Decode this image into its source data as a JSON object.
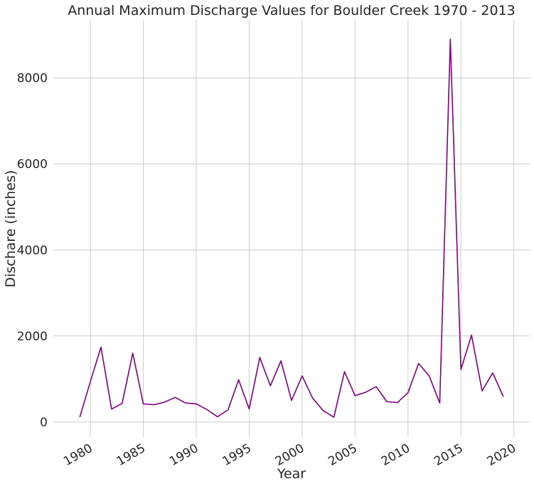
{
  "chart_data": {
    "type": "line",
    "title": "Annual Maximum Discharge Values for Boulder Creek 1970 - 2013",
    "xlabel": "Year",
    "ylabel": "Dischare (inches)",
    "xlim": [
      1976.5,
      2021.5
    ],
    "ylim": [
      -350,
      9350
    ],
    "xticks": [
      1980,
      1985,
      1990,
      1995,
      2000,
      2005,
      2010,
      2015,
      2020
    ],
    "yticks": [
      0,
      2000,
      4000,
      6000,
      8000
    ],
    "grid": true,
    "line_color": "#800080",
    "series": [
      {
        "x": [
          1979,
          1980,
          1981,
          1982,
          1983,
          1984,
          1985,
          1986,
          1987,
          1988,
          1989,
          1990,
          1991,
          1992,
          1993,
          1994,
          1995,
          1996,
          1997,
          1998,
          1999,
          2000,
          2001,
          2002,
          2003,
          2004,
          2005,
          2006,
          2007,
          2008,
          2009,
          2010,
          2011,
          2012,
          2013,
          2014,
          2015,
          2016,
          2017,
          2018,
          2019
        ],
        "values": [
          110,
          940,
          1740,
          300,
          430,
          1600,
          420,
          400,
          460,
          570,
          440,
          420,
          290,
          120,
          280,
          980,
          300,
          1500,
          840,
          1420,
          500,
          1070,
          550,
          260,
          110,
          1170,
          610,
          690,
          820,
          470,
          450,
          680,
          1360,
          1070,
          440,
          8900,
          1220,
          2020,
          720,
          1140,
          590
        ]
      }
    ]
  }
}
